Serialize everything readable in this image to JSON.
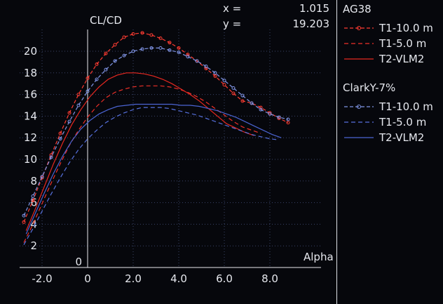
{
  "window": {
    "background": "#06070c"
  },
  "readout": {
    "x_label": "x =",
    "x_value": "1.015",
    "y_label": "y =",
    "y_value": "19.203"
  },
  "chart_data": {
    "type": "line",
    "title": "",
    "ylabel": "CL/CD",
    "xlabel": "Alpha",
    "xlim": [
      -2.95,
      10.25
    ],
    "ylim": [
      0,
      22
    ],
    "x_ticks": [
      -2,
      0,
      2,
      4,
      6,
      8
    ],
    "x_tick_labels": [
      "-2.0",
      "0",
      "2.0",
      "4.0",
      "6.0",
      "8.0"
    ],
    "y_ticks": [
      0,
      2,
      4,
      6,
      8,
      10,
      12,
      14,
      16,
      18,
      20
    ],
    "grid": "dotted",
    "legend_position": "right",
    "colors": {
      "grid": "#3a4468",
      "axis": "#e9e9ee",
      "text": "#e6e8ee"
    },
    "series": [
      {
        "name": "AG38 T1-10.0",
        "color": "#ff3c32",
        "style": "dashdot-markers",
        "x": [
          -2.8,
          -2.4,
          -2.0,
          -1.6,
          -1.2,
          -0.8,
          -0.4,
          0.0,
          0.4,
          0.8,
          1.2,
          1.6,
          2.0,
          2.4,
          2.8,
          3.2,
          3.6,
          4.0,
          4.4,
          4.8,
          5.2,
          5.6,
          6.0,
          6.4,
          6.8,
          7.2,
          7.6,
          8.0,
          8.4,
          8.8
        ],
        "y": [
          4.2,
          6.2,
          8.3,
          10.4,
          12.4,
          14.3,
          16.0,
          17.5,
          18.8,
          19.8,
          20.6,
          21.3,
          21.6,
          21.7,
          21.5,
          21.2,
          20.8,
          20.3,
          19.7,
          19.1,
          18.4,
          17.7,
          16.9,
          16.1,
          15.4,
          15.2,
          14.8,
          14.3,
          13.8,
          13.4
        ]
      },
      {
        "name": "AG38 T1-5.0",
        "color": "#f03028",
        "style": "dashed",
        "x": [
          -2.8,
          -2.4,
          -2.0,
          -1.6,
          -1.2,
          -0.8,
          -0.4,
          0.0,
          0.4,
          0.8,
          1.2,
          1.6,
          2.0,
          2.4,
          2.8,
          3.2,
          3.6,
          4.0,
          4.4,
          4.8,
          5.2,
          5.6,
          6.0,
          6.4,
          6.8,
          7.2,
          7.6
        ],
        "y": [
          2.3,
          4.0,
          5.9,
          7.8,
          9.6,
          11.3,
          12.7,
          13.9,
          14.9,
          15.7,
          16.2,
          16.5,
          16.7,
          16.8,
          16.8,
          16.8,
          16.7,
          16.5,
          16.2,
          15.8,
          15.3,
          14.7,
          14.1,
          13.5,
          13.0,
          12.7,
          12.4
        ]
      },
      {
        "name": "AG38 T2-VLM2",
        "color": "#e82820",
        "style": "solid",
        "x": [
          -2.7,
          -2.3,
          -1.9,
          -1.5,
          -1.1,
          -0.7,
          -0.3,
          0.1,
          0.5,
          0.9,
          1.3,
          1.7,
          2.1,
          2.5,
          2.9,
          3.3,
          3.7,
          4.1,
          4.5,
          4.9,
          5.3,
          5.7,
          6.1,
          6.5,
          6.9,
          7.3
        ],
        "y": [
          3.4,
          5.4,
          7.5,
          9.6,
          11.5,
          13.2,
          14.6,
          15.8,
          16.7,
          17.4,
          17.8,
          18.0,
          18.0,
          17.9,
          17.7,
          17.4,
          17.0,
          16.5,
          16.0,
          15.4,
          14.7,
          14.0,
          13.3,
          12.9,
          12.5,
          12.2
        ]
      },
      {
        "name": "ClarkY-7% T1-10.0",
        "color": "#8095e6",
        "style": "dashdot-markers",
        "x": [
          -2.8,
          -2.4,
          -2.0,
          -1.6,
          -1.2,
          -0.8,
          -0.4,
          0.0,
          0.4,
          0.8,
          1.2,
          1.6,
          2.0,
          2.4,
          2.8,
          3.2,
          3.6,
          4.0,
          4.4,
          4.8,
          5.2,
          5.6,
          6.0,
          6.4,
          6.8,
          7.2,
          7.6,
          8.0,
          8.4,
          8.8
        ],
        "y": [
          4.8,
          6.6,
          8.4,
          10.2,
          11.9,
          13.5,
          15.0,
          16.3,
          17.4,
          18.3,
          19.1,
          19.6,
          20.0,
          20.2,
          20.3,
          20.3,
          20.1,
          19.9,
          19.5,
          19.1,
          18.6,
          18.0,
          17.3,
          16.6,
          15.9,
          15.2,
          14.6,
          14.2,
          13.9,
          13.7
        ]
      },
      {
        "name": "ClarkY-7% T1-5.0",
        "color": "#5670dd",
        "style": "dashed",
        "x": [
          -2.8,
          -2.4,
          -2.0,
          -1.6,
          -1.2,
          -0.8,
          -0.4,
          0.0,
          0.4,
          0.8,
          1.2,
          1.6,
          2.0,
          2.4,
          2.8,
          3.2,
          3.6,
          4.0,
          4.4,
          4.8,
          5.2,
          5.6,
          6.0,
          6.4,
          6.8,
          7.2,
          7.6,
          8.0,
          8.4
        ],
        "y": [
          2.1,
          3.6,
          5.2,
          6.8,
          8.3,
          9.7,
          10.9,
          11.9,
          12.7,
          13.4,
          13.9,
          14.3,
          14.6,
          14.8,
          14.8,
          14.8,
          14.7,
          14.5,
          14.3,
          14.1,
          13.8,
          13.5,
          13.2,
          12.9,
          12.6,
          12.3,
          12.1,
          11.9,
          11.8
        ]
      },
      {
        "name": "ClarkY-7% T2-VLM2",
        "color": "#4b64d2",
        "style": "solid",
        "x": [
          -2.7,
          -2.3,
          -1.9,
          -1.5,
          -1.1,
          -0.7,
          -0.3,
          0.1,
          0.5,
          0.9,
          1.3,
          1.7,
          2.1,
          2.5,
          2.9,
          3.3,
          3.7,
          4.1,
          4.5,
          4.9,
          5.3,
          5.7,
          6.1,
          6.5,
          6.9,
          7.3,
          7.7,
          8.1,
          8.5
        ],
        "y": [
          3.1,
          5.0,
          6.9,
          8.7,
          10.3,
          11.7,
          12.8,
          13.6,
          14.2,
          14.6,
          14.9,
          15.0,
          15.1,
          15.1,
          15.1,
          15.1,
          15.1,
          15.0,
          15.0,
          14.9,
          14.7,
          14.5,
          14.2,
          13.9,
          13.5,
          13.1,
          12.7,
          12.3,
          12.0
        ]
      }
    ]
  },
  "legend": {
    "groups": [
      {
        "title": "AG38",
        "items": [
          {
            "label": "T1-10.0 m",
            "series": 0
          },
          {
            "label": "T1-5.0 m",
            "series": 1
          },
          {
            "label": "T2-VLM2",
            "series": 2
          }
        ]
      },
      {
        "title": "ClarkY-7%",
        "items": [
          {
            "label": "T1-10.0 m",
            "series": 3
          },
          {
            "label": "T1-5.0 m",
            "series": 4
          },
          {
            "label": "T2-VLM2",
            "series": 5
          }
        ]
      }
    ]
  }
}
